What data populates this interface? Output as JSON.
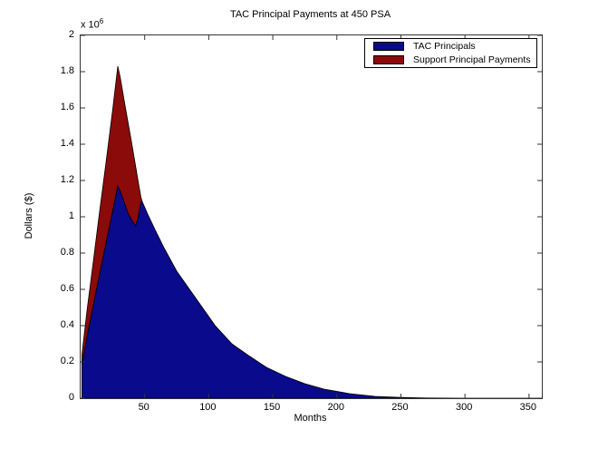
{
  "figure": {
    "title": "TAC Principal Payments at 450 PSA",
    "xlabel": "Months",
    "ylabel": "Dollars ($)",
    "y_multiplier": "x 10",
    "y_multiplier_exp": "6",
    "colors": {
      "tac": "#0a0a8c",
      "support": "#8b0a0a",
      "axis": "#333333",
      "background": "#ffffff",
      "text": "#000000"
    },
    "x_tick_values": [
      50,
      100,
      150,
      200,
      250,
      300,
      350
    ],
    "x_tick_labels": [
      "50",
      "100",
      "150",
      "200",
      "250",
      "300",
      "350"
    ],
    "y_tick_values": [
      0,
      200000,
      400000,
      600000,
      800000,
      1000000,
      1200000,
      1400000,
      1600000,
      1800000,
      2000000
    ],
    "y_tick_labels": [
      "0",
      "0.2",
      "0.4",
      "0.6",
      "0.8",
      "1",
      "1.2",
      "1.4",
      "1.6",
      "1.8",
      "2"
    ],
    "legend": [
      {
        "label": "TAC Principals",
        "color": "#0a0a8c"
      },
      {
        "label": "Support Principal Payments",
        "color": "#8b0a0a"
      }
    ]
  },
  "chart_data": {
    "type": "area",
    "stacked": true,
    "title": "TAC Principal Payments at 450 PSA",
    "xlabel": "Months",
    "ylabel": "Dollars ($)",
    "xlim": [
      0,
      360
    ],
    "ylim": [
      0,
      2000000
    ],
    "legend_position": "northeast",
    "grid": false,
    "x": [
      1,
      5,
      10,
      15,
      20,
      25,
      29,
      31,
      34,
      37,
      40,
      43,
      45,
      47,
      48,
      52,
      58,
      65,
      75,
      85,
      95,
      105,
      118,
      130,
      145,
      160,
      175,
      190,
      210,
      230,
      250,
      270,
      300,
      360
    ],
    "series": [
      {
        "name": "TAC Principals",
        "color": "#0a0a8c",
        "values": [
          180000,
          340000,
          515000,
          690000,
          860000,
          1030000,
          1170000,
          1140000,
          1080000,
          1020000,
          980000,
          950000,
          1000000,
          1080000,
          1085000,
          1020000,
          930000,
          830000,
          700000,
          600000,
          500000,
          400000,
          300000,
          240000,
          170000,
          120000,
          80000,
          50000,
          25000,
          10000,
          4000,
          1000,
          0,
          0
        ]
      },
      {
        "name": "Support Principal Payments",
        "color": "#8b0a0a",
        "values": [
          60000,
          145000,
          245000,
          350000,
          450000,
          560000,
          660000,
          625000,
          560000,
          500000,
          420000,
          325000,
          190000,
          30000,
          0,
          0,
          0,
          0,
          0,
          0,
          0,
          0,
          0,
          0,
          0,
          0,
          0,
          0,
          0,
          0,
          0,
          0,
          0,
          0
        ]
      }
    ]
  }
}
